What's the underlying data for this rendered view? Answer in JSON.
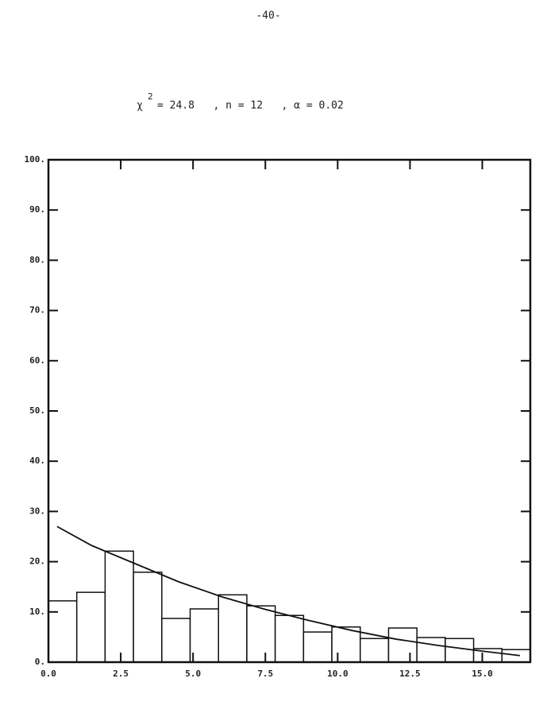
{
  "page_number": "-40-",
  "chart_data": {
    "type": "histogram",
    "title_symbol": "χ",
    "title_exponent": "2",
    "title_text": "= 24.8   , n = 12   , α = 0.02",
    "bins": [
      0,
      0.98,
      1.96,
      2.94,
      3.92,
      4.9,
      5.88,
      6.86,
      7.84,
      8.82,
      9.8,
      10.78,
      11.76,
      12.74,
      13.72,
      14.7,
      15.68,
      16.66
    ],
    "values": [
      12.2,
      13.9,
      22.1,
      17.9,
      8.7,
      10.6,
      13.4,
      11.2,
      9.3,
      6.0,
      7.0,
      4.7,
      6.8,
      4.9,
      4.7,
      2.7,
      2.5
    ],
    "color": "#ffffff",
    "curve": {
      "x": [
        0.3,
        1.5,
        3.0,
        4.5,
        6.0,
        7.5,
        9.0,
        10.5,
        12.0,
        13.5,
        15.0,
        16.3
      ],
      "values": [
        27,
        23.2,
        19.6,
        16.0,
        13.0,
        10.5,
        8.3,
        6.3,
        4.6,
        3.3,
        2.2,
        1.3
      ],
      "color": "#111111"
    },
    "xlim": [
      0,
      16.66
    ],
    "ylim": [
      0,
      100
    ],
    "xticks": [
      {
        "value": 0,
        "label": "0.0"
      },
      {
        "value": 2.5,
        "label": "2.5"
      },
      {
        "value": 5,
        "label": "5.0"
      },
      {
        "value": 7.5,
        "label": "7.5"
      },
      {
        "value": 10,
        "label": "10.0"
      },
      {
        "value": 12.5,
        "label": "12.5"
      },
      {
        "value": 15,
        "label": "15.0"
      }
    ],
    "yticks": [
      {
        "value": 0,
        "label": "0."
      },
      {
        "value": 10,
        "label": "10."
      },
      {
        "value": 20,
        "label": "20."
      },
      {
        "value": 30,
        "label": "30."
      },
      {
        "value": 40,
        "label": "40."
      },
      {
        "value": 50,
        "label": "50."
      },
      {
        "value": 60,
        "label": "60."
      },
      {
        "value": 70,
        "label": "70."
      },
      {
        "value": 80,
        "label": "80."
      },
      {
        "value": 90,
        "label": "90."
      },
      {
        "value": 100,
        "label": "100."
      }
    ]
  }
}
